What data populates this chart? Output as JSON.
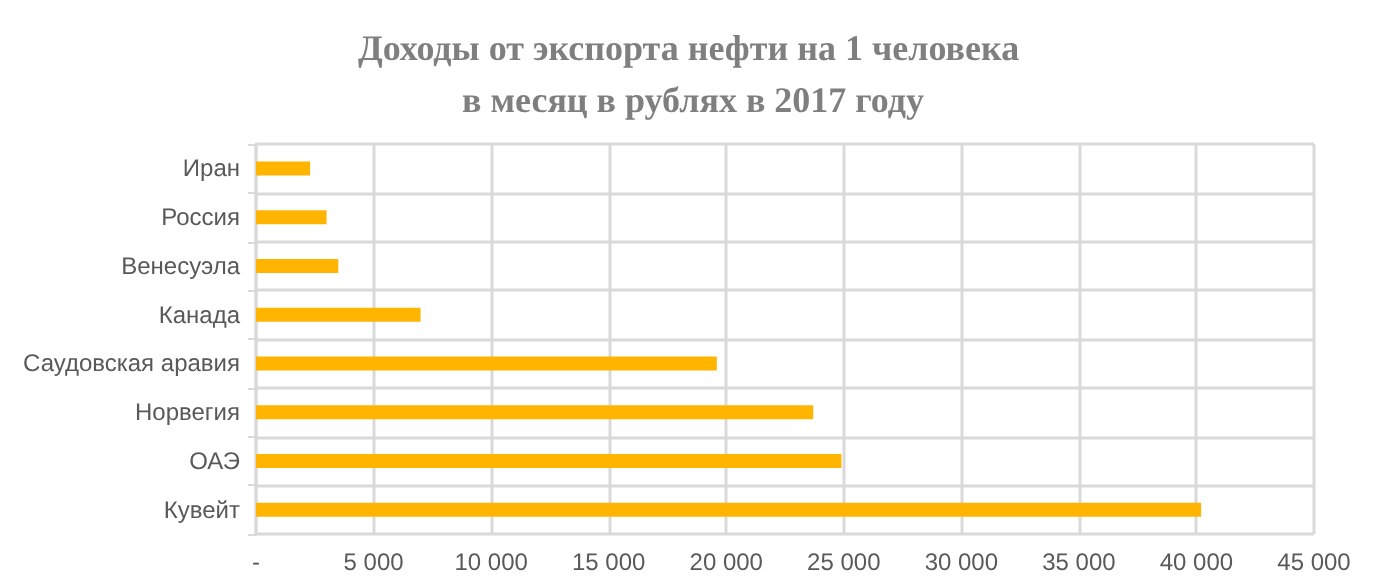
{
  "chart_data": {
    "type": "bar",
    "orientation": "horizontal",
    "title": "Доходы от экспорта нефти на 1 человека в месяц в рублях в 2017 году",
    "categories": [
      "Иран",
      "Россия",
      "Венесуэла",
      "Канада",
      "Саудовская аравия",
      "Норвегия",
      "ОАЭ",
      "Кувейт"
    ],
    "values": [
      2300,
      3000,
      3500,
      7000,
      19600,
      23700,
      24900,
      40200
    ],
    "color": "#ffb400",
    "xlim": [
      0,
      45000
    ],
    "xticks": [
      {
        "value": 0,
        "label": "-"
      },
      {
        "value": 5000,
        "label": "5 000"
      },
      {
        "value": 10000,
        "label": "10 000"
      },
      {
        "value": 15000,
        "label": "15 000"
      },
      {
        "value": 20000,
        "label": "20 000"
      },
      {
        "value": 25000,
        "label": "25 000"
      },
      {
        "value": 30000,
        "label": "30 000"
      },
      {
        "value": 35000,
        "label": "35 000"
      },
      {
        "value": 40000,
        "label": "40 000"
      },
      {
        "value": 45000,
        "label": "45 000"
      }
    ],
    "grid": true
  }
}
